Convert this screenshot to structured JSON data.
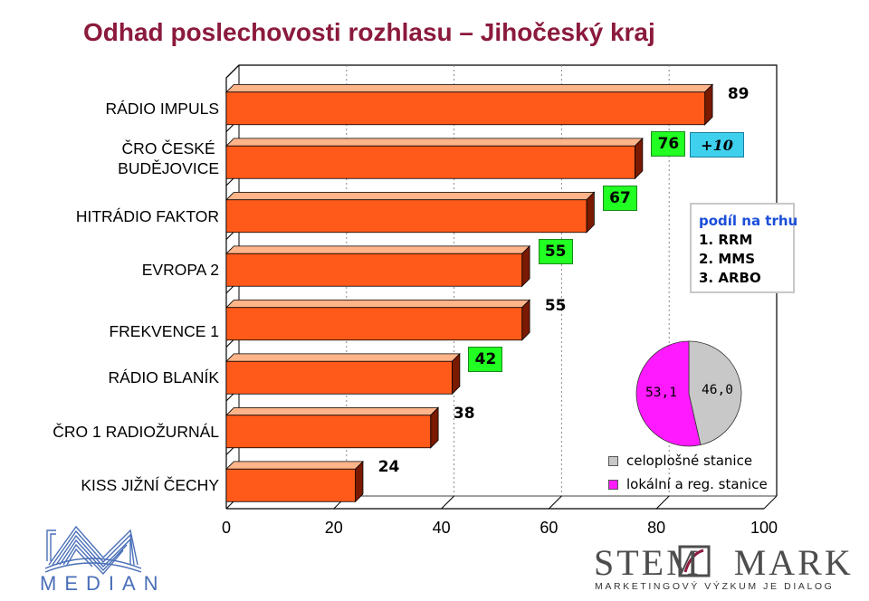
{
  "title": "Odhad poslechovosti rozhlasu – Jihočeský kraj",
  "chart_data": {
    "type": "bar",
    "orientation": "horizontal",
    "categories": [
      "RÁDIO IMPULS",
      "ČRO ČESKÉ BUDĚJOVICE",
      "HITRÁDIO FAKTOR",
      "EVROPA 2",
      "FREKVENCE 1",
      "RÁDIO BLANÍK",
      "ČRO 1 RADIOŽURNÁL",
      "KISS JIŽNÍ ČECHY"
    ],
    "values": [
      89,
      76,
      67,
      55,
      55,
      42,
      38,
      24
    ],
    "value_labels": [
      "89",
      "76",
      "67",
      "55",
      "55",
      "42",
      "38",
      "24"
    ],
    "highlighted": [
      false,
      true,
      true,
      true,
      false,
      true,
      false,
      false
    ],
    "xlim": [
      0,
      100
    ],
    "xticks": [
      "0",
      "20",
      "40",
      "60",
      "80",
      "100"
    ],
    "grid": true,
    "annotation": "+10",
    "rank_box": {
      "title": "podíl na trhu",
      "items": [
        "1. RRM",
        "2. MMS",
        "3. ARBO"
      ]
    },
    "pie": {
      "type": "pie",
      "slices": [
        {
          "label": "celoplošné stanice",
          "value": 46.0,
          "value_label": "46,0",
          "color": "#c8c8c8"
        },
        {
          "label": "lokální a reg. stanice",
          "value": 53.1,
          "value_label": "53,1",
          "color": "#ff1aff"
        }
      ]
    }
  },
  "colors": {
    "title": "#8b1a3c",
    "bar_front": "#ff5a1a",
    "bar_top": "#ffb48a",
    "bar_side": "#7a1a00",
    "highlight": "#22ff22",
    "annotation": "#3fd0ee",
    "rank_title": "#1a4ed8"
  },
  "logos": {
    "left": "MEDIAN",
    "right": "STEMMARK",
    "right_tagline": "MARKETINGOVÝ VÝZKUM JE DIALOG"
  }
}
